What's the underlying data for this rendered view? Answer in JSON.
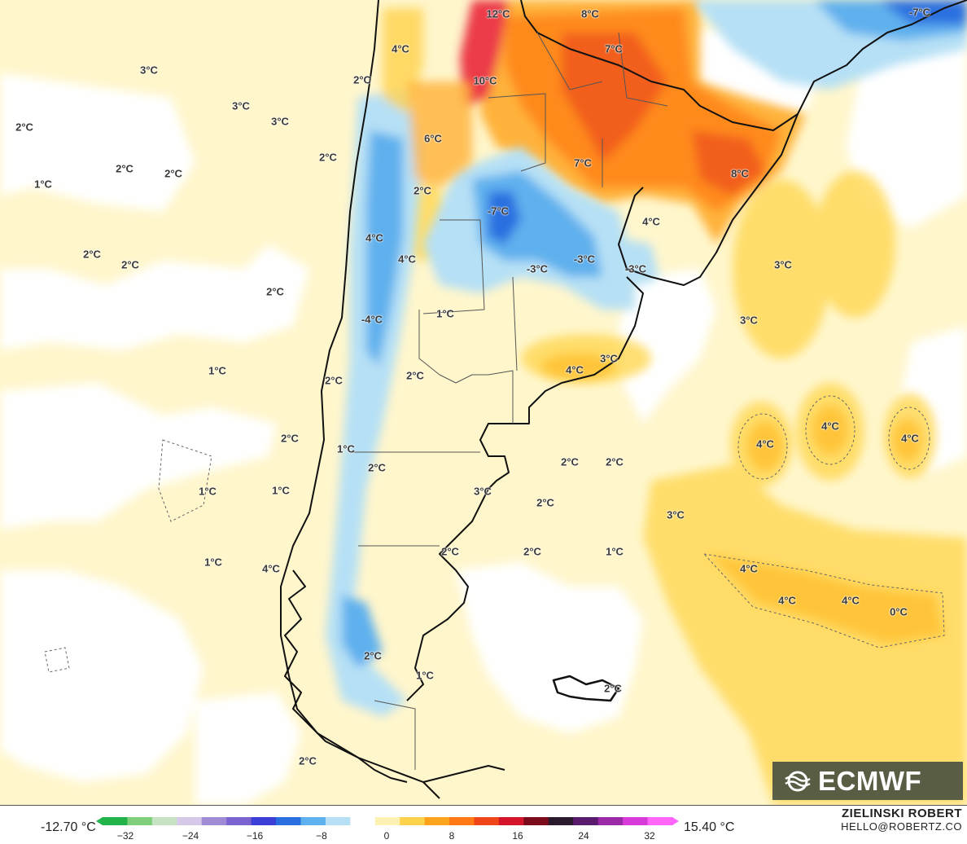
{
  "map": {
    "labels": [
      "12°C",
      "8°C",
      "-7°C",
      "4°C",
      "7°C",
      "2°C",
      "3°C",
      "10°C",
      "3°C",
      "3°C",
      "2°C",
      "6°C",
      "2°C",
      "7°C",
      "2°C",
      "2°C",
      "8°C",
      "1°C",
      "2°C",
      "-7°C",
      "4°C",
      "4°C",
      "2°C",
      "2°C",
      "-3°C",
      "-3°C",
      "-3°C",
      "3°C",
      "4°C",
      "2°C",
      "-4°C",
      "1°C",
      "3°C",
      "4°C",
      "1°C",
      "3°C",
      "2°C",
      "2°C",
      "4°C",
      "4°C",
      "4°C",
      "2°C",
      "1°C",
      "2°C",
      "2°C",
      "2°C",
      "1°C",
      "1°C",
      "3°C",
      "3°C",
      "2°C",
      "2°C",
      "2°C",
      "1°C",
      "1°C",
      "4°C",
      "4°C",
      "4°C",
      "4°C",
      "0°C",
      "2°C",
      "1°C",
      "2°C",
      "2°C"
    ]
  },
  "legend": {
    "min_label": "-12.70 °C",
    "max_label": "15.40 °C",
    "ticks": [
      "−32",
      "−24",
      "−16",
      "−8",
      "0",
      "8",
      "16",
      "24",
      "32"
    ],
    "colors": [
      "#22b34a",
      "#7fd07a",
      "#c5e3c0",
      "#d6c8e8",
      "#a18ad6",
      "#7b64d0",
      "#3b3fd6",
      "#2a6fe0",
      "#5fb0ee",
      "#b6e0f5",
      "#ffffff",
      "#fff0b3",
      "#ffd24d",
      "#ffa31a",
      "#ff7a14",
      "#f0451a",
      "#d4142a",
      "#7a0c1a",
      "#2b1a2e",
      "#5a1a6e",
      "#9a2aa8",
      "#d83ad8",
      "#ff66ff"
    ]
  },
  "logo": {
    "text": "ECMWF",
    "icon": "ecmwf-logo-icon"
  },
  "author": {
    "name": "ZIELINSKI ROBERT",
    "email": "HELLO@ROBERTZ.CO"
  }
}
